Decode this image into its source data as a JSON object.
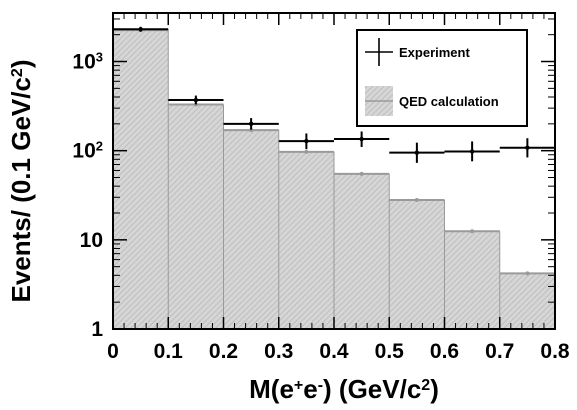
{
  "chart_data": {
    "type": "bar",
    "x_edges": [
      0,
      0.1,
      0.2,
      0.3,
      0.4,
      0.5,
      0.6,
      0.7,
      0.8
    ],
    "x_ticks": [
      "0",
      "0.1",
      "0.2",
      "0.3",
      "0.4",
      "0.5",
      "0.6",
      "0.7",
      "0.8"
    ],
    "y_ticks": [
      {
        "value": 1,
        "base": "1",
        "exp": ""
      },
      {
        "value": 10,
        "base": "10",
        "exp": ""
      },
      {
        "value": 100,
        "base": "10",
        "exp": "2"
      },
      {
        "value": 1000,
        "base": "10",
        "exp": "3"
      }
    ],
    "series": [
      {
        "name": "Experiment",
        "kind": "errorbar",
        "x": [
          0.05,
          0.15,
          0.25,
          0.35,
          0.45,
          0.55,
          0.65,
          0.75
        ],
        "y": [
          2300,
          370,
          200,
          128,
          135,
          95,
          98,
          108
        ],
        "y_low": [
          2160,
          330,
          172,
          104,
          110,
          73,
          76,
          84
        ],
        "y_high": [
          2450,
          415,
          232,
          156,
          164,
          123,
          127,
          138
        ]
      },
      {
        "name": "QED calculation",
        "kind": "histogram",
        "values": [
          2250,
          330,
          170,
          97,
          55,
          28,
          12.5,
          4.2
        ]
      }
    ],
    "xlabel": {
      "base": "M(e",
      "sup1": "+",
      "mid": "e",
      "sup2": "-",
      "rest": ") (GeV/c",
      "sup3": "2",
      "end": ")"
    },
    "ylabel": {
      "base": "Events/ (0.1 GeV/c",
      "sup": "2",
      "end": ")"
    },
    "xlim": [
      0,
      0.8
    ],
    "ylim": [
      1,
      3500
    ],
    "y_scale": "log",
    "grid": false,
    "legend_position": "top-right",
    "colors": {
      "histogram_fill": "#d0d0d0",
      "histogram_line": "#9a9a9a",
      "marker": "#000000",
      "qed_marker": "#9a9a9a"
    }
  }
}
